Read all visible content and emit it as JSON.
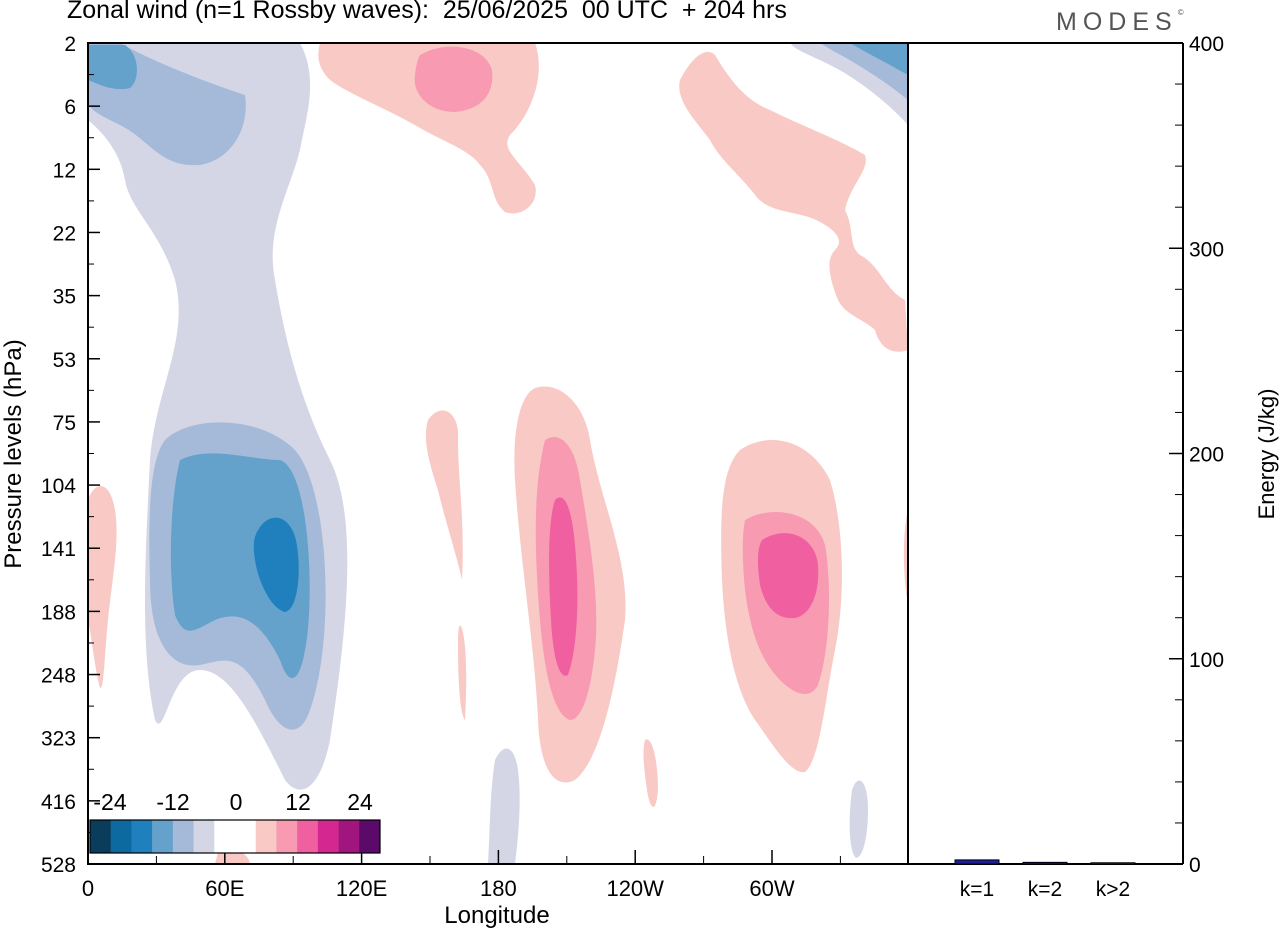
{
  "header": {
    "title": "Zonal wind (n=1 Rossby waves):  25/06/2025  00 UTC  + 204 hrs",
    "brand": "MODES",
    "brand_mark": "©"
  },
  "colors": {
    "neg": [
      "#0a3d5c",
      "#0d6aa0",
      "#2080bd",
      "#64a2cc",
      "#a4bad8",
      "#d4d6e6"
    ],
    "zero": "#ffffff",
    "pos": [
      "#f9cac5",
      "#f89bb2",
      "#f060a0",
      "#d42890",
      "#a0167e",
      "#5c0a6a"
    ],
    "bar": "#1f1f9a"
  },
  "chart_data": [
    {
      "type": "heatmap",
      "title": "Zonal wind (n=1 Rossby waves):  25/06/2025  00 UTC  + 204 hrs",
      "xlabel": "Longitude",
      "ylabel": "Pressure levels (hPa)",
      "x_ticks": [
        "0",
        "60E",
        "120E",
        "180",
        "120W",
        "60W"
      ],
      "x_tick_lon": [
        0,
        60,
        120,
        180,
        240,
        300
      ],
      "xlim": [
        0,
        360
      ],
      "y_ticks": [
        "2",
        "6",
        "12",
        "22",
        "35",
        "53",
        "75",
        "104",
        "141",
        "188",
        "248",
        "323",
        "416",
        "528"
      ],
      "y_scale": "level index (top to bottom)",
      "colorbar": {
        "labels": [
          "-24",
          "-12",
          "0",
          "12",
          "24"
        ],
        "levels": [
          -30,
          -24,
          -18,
          -12,
          -6,
          -3,
          0,
          3,
          6,
          12,
          18,
          24,
          30
        ]
      },
      "features": [
        {
          "name": "negative centre, upper troposphere near 85E",
          "lon": 85,
          "level_hpa": 141,
          "value": -18
        },
        {
          "name": "positive centre near 160W",
          "lon": 200,
          "level_hpa": 141,
          "value": 18
        },
        {
          "name": "positive centre near 60W",
          "lon": 305,
          "level_hpa": 141,
          "value": 12
        },
        {
          "name": "negative region, stratosphere near 30E",
          "lon": 30,
          "level_hpa": 6,
          "value": -12
        },
        {
          "name": "positive region, stratosphere near 150E",
          "lon": 150,
          "level_hpa": 4,
          "value": 12
        }
      ]
    },
    {
      "type": "bar",
      "categories": [
        "k=1",
        "k=2",
        "k>2"
      ],
      "values": [
        2,
        0.8,
        0.6
      ],
      "ylabel": "Energy (J/kg)",
      "ylim": [
        0,
        400
      ],
      "y_ticks": [
        "0",
        "100",
        "200",
        "300",
        "400"
      ]
    }
  ]
}
